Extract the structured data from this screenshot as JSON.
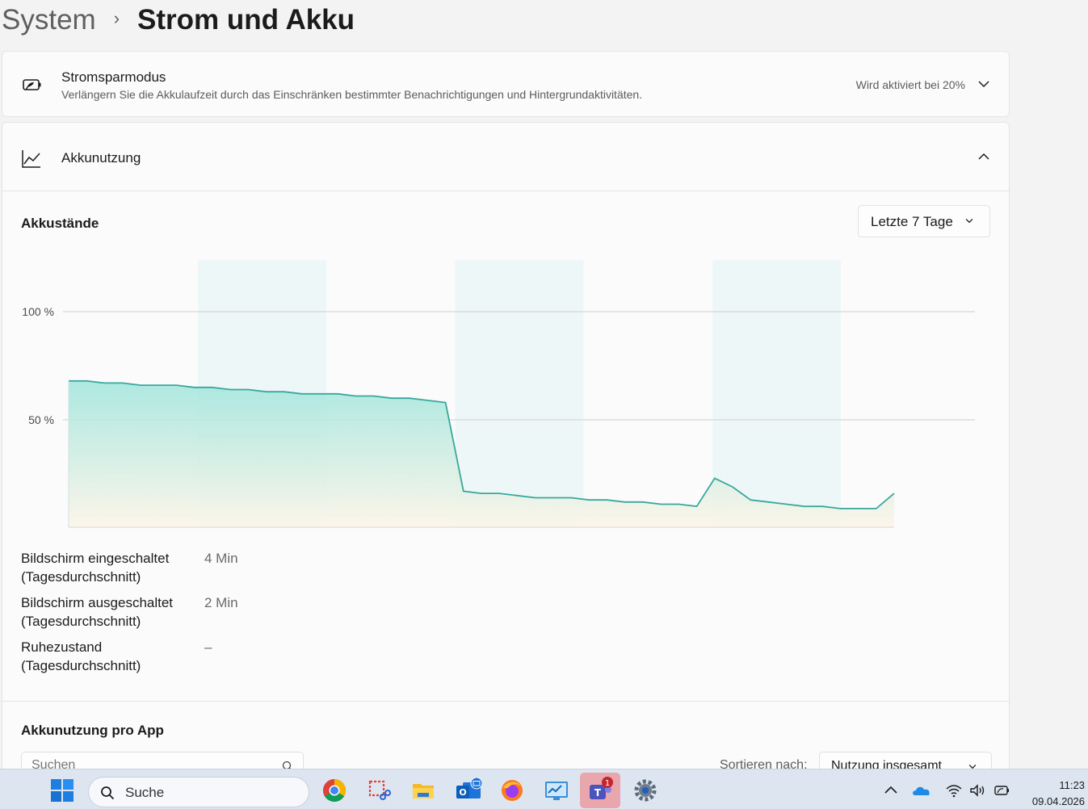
{
  "breadcrumb": {
    "parent": "System",
    "separator": "›",
    "current": "Strom und Akku"
  },
  "power_saver": {
    "title": "Stromsparmodus",
    "description": "Verlängern Sie die Akkulaufzeit durch das Einschränken bestimmter Benachrichtigungen und Hintergrundaktivitäten.",
    "status": "Wird aktiviert bei 20%"
  },
  "usage": {
    "title": "Akkunutzung",
    "levels_title": "Akkustände",
    "period_dropdown": "Letzte 7 Tage"
  },
  "chart_data": {
    "type": "area",
    "ylim": [
      0,
      100
    ],
    "y_ticks": [
      "100 %",
      "50 %"
    ],
    "grid": true,
    "series": [
      {
        "values": [
          68,
          68,
          67,
          67,
          66,
          66,
          66,
          65,
          65,
          64,
          64,
          63,
          63,
          62,
          62,
          62,
          61,
          61,
          60,
          60,
          59,
          58,
          17,
          16,
          16,
          15,
          14,
          14,
          14,
          13,
          13,
          12,
          12,
          11,
          11,
          10,
          23,
          19,
          13,
          12,
          11,
          10,
          10,
          9,
          9,
          9,
          16
        ]
      }
    ],
    "colors": {
      "line": "#38a89d",
      "fill_top": "#9fe5dc",
      "fill_bottom": "#fdf5e8",
      "day_band": "#eef7f8"
    }
  },
  "stats": [
    {
      "label": "Bildschirm eingeschaltet (Tagesdurchschnitt)",
      "value": "4 Min"
    },
    {
      "label": "Bildschirm ausgeschaltet (Tagesdurchschnitt)",
      "value": "2 Min"
    },
    {
      "label": "Ruhezustand (Tagesdurchschnitt)",
      "value": "–"
    }
  ],
  "per_app": {
    "title": "Akkunutzung pro App",
    "search_placeholder": "Suchen",
    "sort_label": "Sortieren nach:",
    "sort_value": "Nutzung insgesamt"
  },
  "taskbar": {
    "search_label": "Suche",
    "apps": [
      "start-icon",
      "chrome-icon",
      "snipping-tool-icon",
      "file-explorer-icon",
      "outlook-icon",
      "firefox-icon",
      "remote-desktop-icon",
      "teams-icon",
      "settings-icon"
    ],
    "teams_badge": "1",
    "time": "11:23",
    "date": "09.04.2026"
  }
}
